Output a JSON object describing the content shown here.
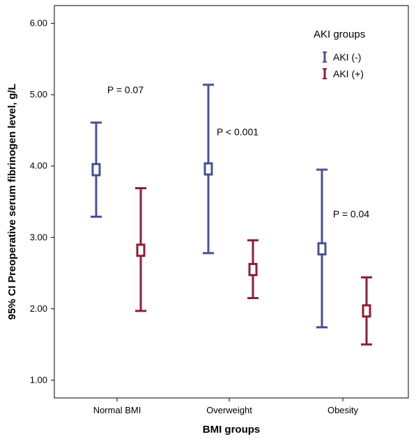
{
  "chart_data": {
    "type": "errorbar",
    "categories": [
      "Normal BMI",
      "Overweight",
      "Obesity"
    ],
    "xlabel": "BMI groups",
    "ylabel": "95% CI Preoperative serum fibrinogen level, g/L",
    "ylim": [
      0.75,
      6.25
    ],
    "yticks": [
      "1.00",
      "2.00",
      "3.00",
      "4.00",
      "5.00",
      "6.00"
    ],
    "legend": {
      "title": "AKI groups",
      "placement": "top-right"
    },
    "series": [
      {
        "name": "AKI (-)",
        "color": "#4a5096",
        "means": [
          3.95,
          3.96,
          2.84
        ],
        "lower": [
          3.29,
          2.78,
          1.74
        ],
        "upper": [
          4.61,
          5.14,
          3.95
        ]
      },
      {
        "name": "AKI (+)",
        "color": "#8c1e34",
        "means": [
          2.82,
          2.55,
          1.97
        ],
        "lower": [
          1.97,
          2.15,
          1.5
        ],
        "upper": [
          3.69,
          2.96,
          2.44
        ]
      }
    ],
    "annotations": [
      {
        "category": "Normal BMI",
        "text": "P = 0.07",
        "y": 5.02
      },
      {
        "category": "Overweight",
        "text": "P < 0.001",
        "y": 4.43
      },
      {
        "category": "Obesity",
        "text": "P = 0.04",
        "y": 3.28
      }
    ],
    "grid": false
  }
}
